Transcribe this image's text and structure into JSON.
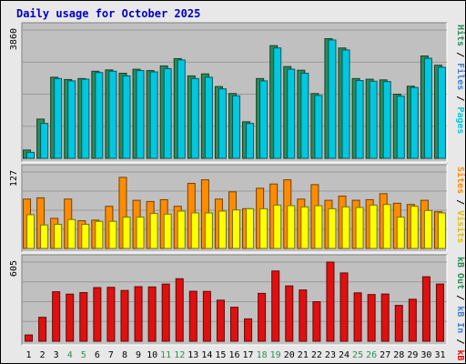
{
  "chart_data": {
    "title": "Daily usage for October 2025",
    "type": "bar",
    "categories": [
      "1",
      "2",
      "3",
      "4",
      "5",
      "6",
      "7",
      "8",
      "9",
      "10",
      "11",
      "12",
      "13",
      "14",
      "15",
      "16",
      "17",
      "18",
      "19",
      "20",
      "21",
      "22",
      "23",
      "24",
      "25",
      "26",
      "27",
      "28",
      "29",
      "30",
      "31"
    ],
    "weekend_days": [
      "4",
      "5",
      "11",
      "12",
      "18",
      "19",
      "25",
      "26"
    ],
    "colors": {
      "title": "#0000c0",
      "hits": "#2e8b57",
      "files": "#4080d0",
      "pages": "#00c8e0",
      "visits": "#e0c000",
      "sites": "#ff8c00",
      "kb_in": "#2e8b57",
      "kb_out": "#4080d0",
      "kb_f": "#e01010",
      "weekend_label": "#2e8b57",
      "weekday_label": "#000000"
    },
    "panels": [
      {
        "ymax_label": "3860",
        "ymax": 3860,
        "side_labels": [
          {
            "text": "Pages",
            "color": "#00c8e0"
          },
          {
            "text": " / ",
            "color": "#000000"
          },
          {
            "text": "Files",
            "color": "#4080d0"
          },
          {
            "text": " / ",
            "color": "#000000"
          },
          {
            "text": "Hits",
            "color": "#2e8b57"
          }
        ],
        "series": [
          {
            "name": "Hits",
            "color": "#2e8b57",
            "values": [
              250,
              1180,
              2440,
              2370,
              2400,
              2620,
              2660,
              2560,
              2680,
              2640,
              2780,
              3000,
              2480,
              2540,
              2160,
              1950,
              1100,
              2400,
              3390,
              2760,
              2650,
              1950,
              3600,
              3320,
              2400,
              2380,
              2360,
              1930,
              2170,
              3080,
              2800
            ]
          },
          {
            "name": "Pages",
            "color": "#00c8e0",
            "values": [
              180,
              1050,
              2400,
              2330,
              2380,
              2580,
              2620,
              2480,
              2640,
              2600,
              2700,
              2960,
              2400,
              2440,
              2090,
              1880,
              1050,
              2330,
              3320,
              2680,
              2560,
              1890,
              3560,
              3260,
              2340,
              2320,
              2310,
              1870,
              2130,
              3010,
              2740
            ]
          }
        ]
      },
      {
        "ymax_label": "127",
        "ymax": 127,
        "side_labels": [
          {
            "text": "Visits",
            "color": "#e0c000"
          },
          {
            "text": " / ",
            "color": "#000000"
          },
          {
            "text": "Sites",
            "color": "#ff8c00"
          }
        ],
        "series": [
          {
            "name": "Sites",
            "color": "#ff8c00",
            "values": [
              82,
              84,
              50,
              82,
              46,
              47,
              70,
              118,
              80,
              78,
              81,
              70,
              108,
              114,
              82,
              94,
              66,
              100,
              107,
              114,
              82,
              106,
              80,
              87,
              80,
              81,
              91,
              75,
              73,
              80,
              61
            ]
          },
          {
            "name": "Visits",
            "color": "#ffff00",
            "values": [
              56,
              39,
              40,
              48,
              40,
              45,
              45,
              52,
              52,
              58,
              57,
              62,
              59,
              59,
              62,
              64,
              66,
              66,
              72,
              71,
              69,
              71,
              66,
              69,
              68,
              72,
              73,
              52,
              70,
              63,
              59
            ]
          }
        ]
      },
      {
        "ymax_label": "605",
        "ymax": 605,
        "side_labels": [
          {
            "text": "kB F",
            "color": "#e01010"
          },
          {
            "text": " / ",
            "color": "#000000"
          },
          {
            "text": "kB In",
            "color": "#4080d0"
          },
          {
            "text": " / ",
            "color": "#000000"
          },
          {
            "text": "kB Out",
            "color": "#2e8b57"
          }
        ],
        "series": [
          {
            "name": "kB F",
            "color": "#e01010",
            "values": [
              48,
              183,
              378,
              360,
              372,
              410,
              412,
              388,
              417,
              415,
              437,
              478,
              382,
              381,
              314,
              260,
              171,
              366,
              537,
              423,
              392,
              302,
              605,
              522,
              370,
              357,
              361,
              274,
              321,
              493,
              437
            ]
          }
        ]
      }
    ]
  }
}
